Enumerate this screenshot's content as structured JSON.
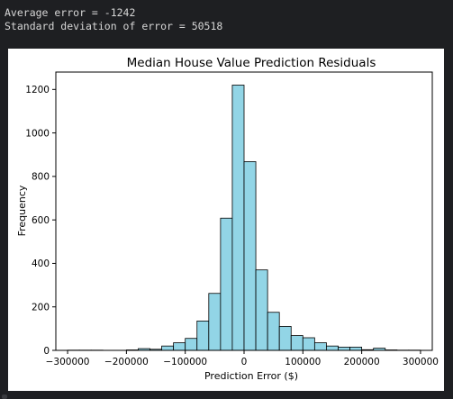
{
  "stdout": {
    "line1": "Average error = -1242",
    "line2": "Standard deviation of error = 50518"
  },
  "chart_data": {
    "type": "bar",
    "title": "Median House Value Prediction Residuals",
    "xlabel": "Prediction Error ($)",
    "ylabel": "Frequency",
    "xlim": [
      -320000,
      320000
    ],
    "ylim": [
      0,
      1280
    ],
    "xticks": [
      -300000,
      -200000,
      -100000,
      0,
      100000,
      200000,
      300000
    ],
    "xtick_labels": [
      "−300000",
      "−200000",
      "−100000",
      "0",
      "100000",
      "200000",
      "300000"
    ],
    "yticks": [
      0,
      200,
      400,
      600,
      800,
      1000,
      1200
    ],
    "bins": {
      "edges": [
        -300000,
        -280000,
        -260000,
        -240000,
        -220000,
        -200000,
        -180000,
        -160000,
        -140000,
        -120000,
        -100000,
        -80000,
        -60000,
        -40000,
        -20000,
        0,
        20000,
        40000,
        60000,
        80000,
        100000,
        120000,
        140000,
        160000,
        180000,
        200000,
        220000,
        240000,
        260000,
        280000,
        300000
      ],
      "counts": [
        1,
        1,
        1,
        0,
        0,
        2,
        8,
        5,
        20,
        35,
        55,
        135,
        262,
        608,
        1220,
        868,
        370,
        175,
        110,
        68,
        58,
        35,
        20,
        15,
        15,
        3,
        10,
        2,
        1,
        1
      ]
    },
    "bar_color": "#92d5e6",
    "edge_color": "#000000",
    "grid": false,
    "legend": false
  }
}
